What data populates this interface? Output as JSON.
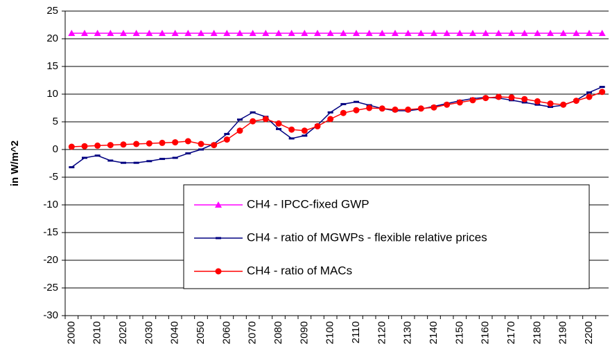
{
  "chart_data": {
    "type": "line",
    "y_label": "in W/m^2",
    "categories": [
      "2000",
      null,
      "2010",
      null,
      "2020",
      null,
      "2030",
      null,
      "2040",
      null,
      "2050",
      null,
      "2060",
      null,
      "2070",
      null,
      "2080",
      null,
      "2090",
      null,
      "2100",
      null,
      "2110",
      null,
      "2120",
      null,
      "2130",
      null,
      "2140",
      null,
      "2150",
      null,
      "2160",
      null,
      "2170",
      null,
      "2180",
      null,
      "2190",
      null,
      "2200",
      null
    ],
    "series": [
      {
        "name": "CH4 - IPCC-fixed GWP",
        "color": "#ff00ff",
        "marker": "triangle",
        "values": [
          21,
          21,
          21,
          21,
          21,
          21,
          21,
          21,
          21,
          21,
          21,
          21,
          21,
          21,
          21,
          21,
          21,
          21,
          21,
          21,
          21,
          21,
          21,
          21,
          21,
          21,
          21,
          21,
          21,
          21,
          21,
          21,
          21,
          21,
          21,
          21,
          21,
          21,
          21,
          21,
          21,
          21
        ]
      },
      {
        "name": "CH4 - ratio of MGWPs - flexible relative prices",
        "color": "#000080",
        "marker": "dash",
        "values": [
          -3.2,
          -1.5,
          -1.1,
          -2.0,
          -2.4,
          -2.4,
          -2.1,
          -1.7,
          -1.5,
          -0.7,
          0.0,
          1.0,
          2.8,
          5.4,
          6.7,
          5.9,
          3.7,
          2.0,
          2.5,
          4.4,
          6.7,
          8.2,
          8.6,
          8.0,
          7.4,
          7.0,
          7.0,
          7.3,
          7.8,
          8.3,
          8.8,
          9.2,
          9.4,
          9.3,
          8.9,
          8.5,
          8.1,
          7.7,
          8.0,
          8.9,
          10.3,
          11.3
        ]
      },
      {
        "name": "CH4 - ratio of MACs",
        "color": "#ff0000",
        "marker": "circle",
        "values": [
          0.5,
          0.6,
          0.7,
          0.8,
          0.9,
          1.0,
          1.1,
          1.2,
          1.3,
          1.5,
          1.0,
          0.8,
          1.8,
          3.4,
          5.1,
          5.5,
          4.7,
          3.6,
          3.4,
          4.2,
          5.5,
          6.6,
          7.1,
          7.5,
          7.4,
          7.2,
          7.2,
          7.4,
          7.6,
          8.1,
          8.5,
          8.9,
          9.3,
          9.5,
          9.4,
          9.1,
          8.7,
          8.3,
          8.1,
          8.8,
          9.5,
          10.4
        ]
      }
    ],
    "ylim": [
      -30,
      25
    ],
    "yticks": [
      -30,
      -25,
      -20,
      -15,
      -10,
      -5,
      0,
      5,
      10,
      15,
      20,
      25
    ],
    "grid": true
  }
}
